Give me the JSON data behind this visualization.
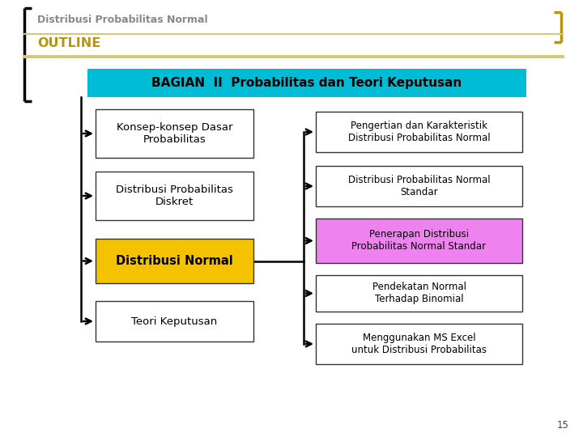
{
  "title": "Distribusi Probabilitas Normal",
  "subtitle": "OUTLINE",
  "header_text": "BAGIAN  II  Probabilitas dan Teori Keputusan",
  "left_boxes": [
    {
      "text": "Konsep-konsep Dasar\nProbabilitas",
      "bg": "#ffffff",
      "text_color": "#000000",
      "bold": false
    },
    {
      "text": "Distribusi Probabilitas\nDiskret",
      "bg": "#ffffff",
      "text_color": "#000000",
      "bold": false
    },
    {
      "text": "Distribusi Normal",
      "bg": "#f5c200",
      "text_color": "#000000",
      "bold": true
    },
    {
      "text": "Teori Keputusan",
      "bg": "#ffffff",
      "text_color": "#000000",
      "bold": false
    }
  ],
  "right_boxes": [
    {
      "text": "Pengertian dan Karakteristik\nDistribusi Probabilitas Normal",
      "bg": "#ffffff",
      "text_color": "#000000"
    },
    {
      "text": "Distribusi Probabilitas Normal\nStandar",
      "bg": "#ffffff",
      "text_color": "#000000"
    },
    {
      "text": "Penerapan Distribusi\nProbabilitas Normal Standar",
      "bg": "#ee82ee",
      "text_color": "#000000"
    },
    {
      "text": "Pendekatan Normal\nTerhadap Binomial",
      "bg": "#ffffff",
      "text_color": "#000000"
    },
    {
      "text": "Menggunakan MS Excel\nuntuk Distribusi Probabilitas",
      "bg": "#ffffff",
      "text_color": "#000000"
    }
  ],
  "header_bg": "#00bcd4",
  "header_text_color": "#000000",
  "gold_color": "#b8960c",
  "page_number": "15",
  "bg_color": "#ffffff",
  "title_color": "#888888",
  "outline_color": "#b8960c",
  "separator_color": "#d4c87a",
  "left_bracket_color": "#000000",
  "right_bracket_color": "#b8960c"
}
